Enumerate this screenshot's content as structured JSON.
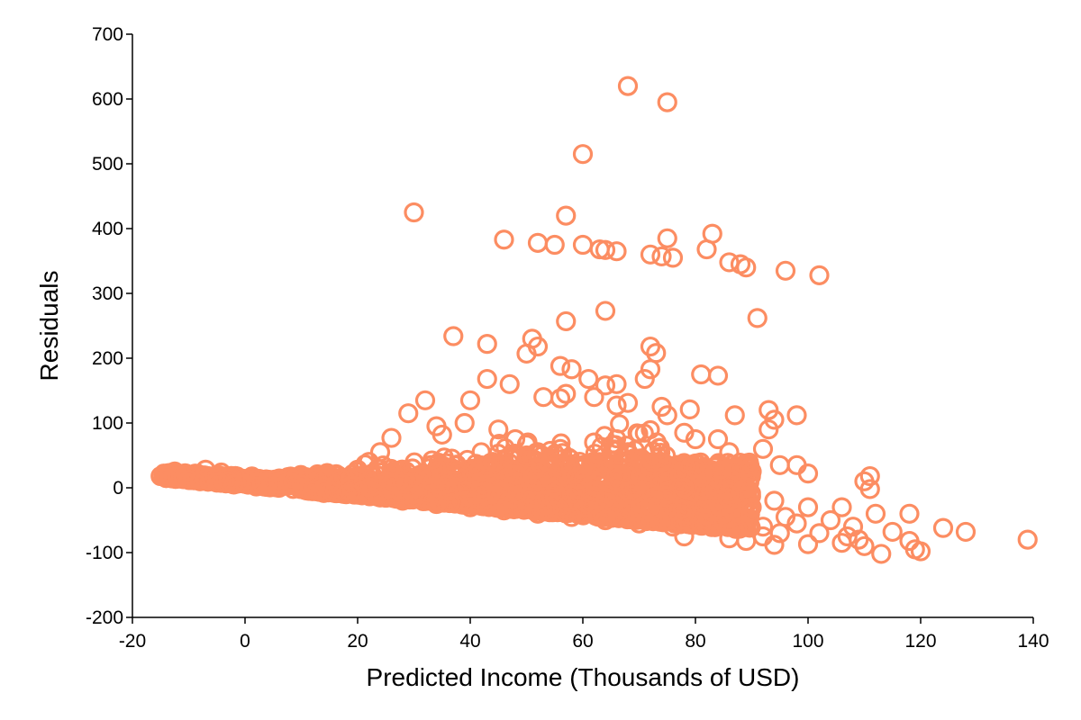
{
  "chart_data": {
    "type": "scatter",
    "title": "",
    "xlabel": "Predicted Income (Thousands of USD)",
    "ylabel": "Residuals",
    "xlim": [
      -20,
      140
    ],
    "ylim": [
      -200,
      700
    ],
    "xticks": [
      "-20",
      "0",
      "20",
      "40",
      "60",
      "80",
      "100",
      "120",
      "140"
    ],
    "yticks": [
      "-200",
      "-100",
      "0",
      "100",
      "200",
      "300",
      "400",
      "500",
      "600",
      "700"
    ],
    "grid": false,
    "marker": "open-circle",
    "color": "#fc8d62",
    "series": [
      {
        "points": [
          [
            68,
            620
          ],
          [
            75,
            595
          ],
          [
            60,
            515
          ],
          [
            30,
            425
          ],
          [
            57,
            420
          ],
          [
            46,
            383
          ],
          [
            52,
            378
          ],
          [
            55,
            375
          ],
          [
            60,
            375
          ],
          [
            63,
            368
          ],
          [
            64,
            367
          ],
          [
            66,
            365
          ],
          [
            72,
            360
          ],
          [
            74,
            357
          ],
          [
            76,
            355
          ],
          [
            75,
            385
          ],
          [
            83,
            392
          ],
          [
            82,
            368
          ],
          [
            86,
            348
          ],
          [
            88,
            345
          ],
          [
            89,
            340
          ],
          [
            96,
            335
          ],
          [
            102,
            328
          ],
          [
            91,
            262
          ],
          [
            64,
            273
          ],
          [
            57,
            257
          ],
          [
            37,
            234
          ],
          [
            43,
            222
          ],
          [
            51,
            230
          ],
          [
            52,
            218
          ],
          [
            50,
            207
          ],
          [
            72,
            218
          ],
          [
            73,
            208
          ],
          [
            72,
            183
          ],
          [
            56,
            188
          ],
          [
            58,
            183
          ],
          [
            61,
            168
          ],
          [
            64,
            158
          ],
          [
            66,
            160
          ],
          [
            81,
            175
          ],
          [
            84,
            173
          ],
          [
            43,
            168
          ],
          [
            47,
            160
          ],
          [
            53,
            140
          ],
          [
            56,
            138
          ],
          [
            57,
            145
          ],
          [
            62,
            140
          ],
          [
            66,
            127
          ],
          [
            68,
            131
          ],
          [
            71,
            168
          ],
          [
            74,
            125
          ],
          [
            75,
            112
          ],
          [
            79,
            121
          ],
          [
            32,
            135
          ],
          [
            29,
            115
          ],
          [
            40,
            135
          ],
          [
            39,
            100
          ],
          [
            34,
            95
          ],
          [
            35,
            82
          ],
          [
            87,
            112
          ],
          [
            93,
            120
          ],
          [
            98,
            112
          ],
          [
            94,
            105
          ],
          [
            93,
            90
          ],
          [
            26,
            77
          ],
          [
            24,
            55
          ],
          [
            22,
            40
          ],
          [
            20,
            28
          ],
          [
            45,
            90
          ],
          [
            48,
            75
          ],
          [
            52,
            55
          ],
          [
            78,
            85
          ],
          [
            80,
            75
          ],
          [
            84,
            75
          ],
          [
            86,
            55
          ],
          [
            92,
            60
          ],
          [
            95,
            35
          ],
          [
            98,
            35
          ],
          [
            100,
            22
          ],
          [
            87,
            30
          ],
          [
            90,
            25
          ],
          [
            -15,
            18
          ],
          [
            -14,
            15
          ],
          [
            -12,
            18
          ],
          [
            -11,
            14
          ],
          [
            -10,
            12
          ],
          [
            -8,
            10
          ],
          [
            -7,
            28
          ],
          [
            -6,
            15
          ],
          [
            -5,
            8
          ],
          [
            -3,
            10
          ],
          [
            -2,
            5
          ],
          [
            0,
            6
          ],
          [
            2,
            2
          ],
          [
            4,
            8
          ],
          [
            6,
            0
          ],
          [
            8,
            10
          ],
          [
            10,
            5
          ],
          [
            12,
            -4
          ],
          [
            14,
            -8
          ],
          [
            16,
            -5
          ],
          [
            17,
            15
          ],
          [
            18,
            -10
          ],
          [
            20,
            -2
          ],
          [
            22,
            10
          ],
          [
            24,
            -15
          ],
          [
            26,
            5
          ],
          [
            28,
            -20
          ],
          [
            30,
            -10
          ],
          [
            32,
            20
          ],
          [
            34,
            -25
          ],
          [
            36,
            -5
          ],
          [
            38,
            25
          ],
          [
            40,
            -30
          ],
          [
            42,
            10
          ],
          [
            44,
            40
          ],
          [
            46,
            -35
          ],
          [
            48,
            20
          ],
          [
            50,
            50
          ],
          [
            52,
            -40
          ],
          [
            54,
            15
          ],
          [
            56,
            60
          ],
          [
            58,
            -45
          ],
          [
            60,
            30
          ],
          [
            62,
            70
          ],
          [
            64,
            -50
          ],
          [
            66,
            20
          ],
          [
            68,
            55
          ],
          [
            70,
            -55
          ],
          [
            72,
            10
          ],
          [
            74,
            40
          ],
          [
            76,
            -60
          ],
          [
            78,
            0
          ],
          [
            80,
            30
          ],
          [
            82,
            -55
          ],
          [
            84,
            -20
          ],
          [
            86,
            -10
          ],
          [
            88,
            -40
          ],
          [
            90,
            -30
          ],
          [
            92,
            -60
          ],
          [
            94,
            -20
          ],
          [
            96,
            -45
          ],
          [
            98,
            -55
          ],
          [
            100,
            -30
          ],
          [
            102,
            -70
          ],
          [
            104,
            -50
          ],
          [
            106,
            -30
          ],
          [
            108,
            -60
          ],
          [
            110,
            10
          ],
          [
            111,
            18
          ],
          [
            111,
            -2
          ],
          [
            112,
            -40
          ],
          [
            110,
            -90
          ],
          [
            113,
            -102
          ],
          [
            115,
            -68
          ],
          [
            118,
            -40
          ],
          [
            118,
            -82
          ],
          [
            119,
            -95
          ],
          [
            120,
            -98
          ],
          [
            124,
            -62
          ],
          [
            128,
            -68
          ],
          [
            139,
            -80
          ],
          [
            94,
            -88
          ],
          [
            100,
            -87
          ],
          [
            89,
            -82
          ],
          [
            86,
            -78
          ],
          [
            78,
            -75
          ],
          [
            107,
            -75
          ],
          [
            109,
            -80
          ],
          [
            106,
            -85
          ],
          [
            92,
            -75
          ],
          [
            95,
            -70
          ]
        ]
      }
    ]
  }
}
